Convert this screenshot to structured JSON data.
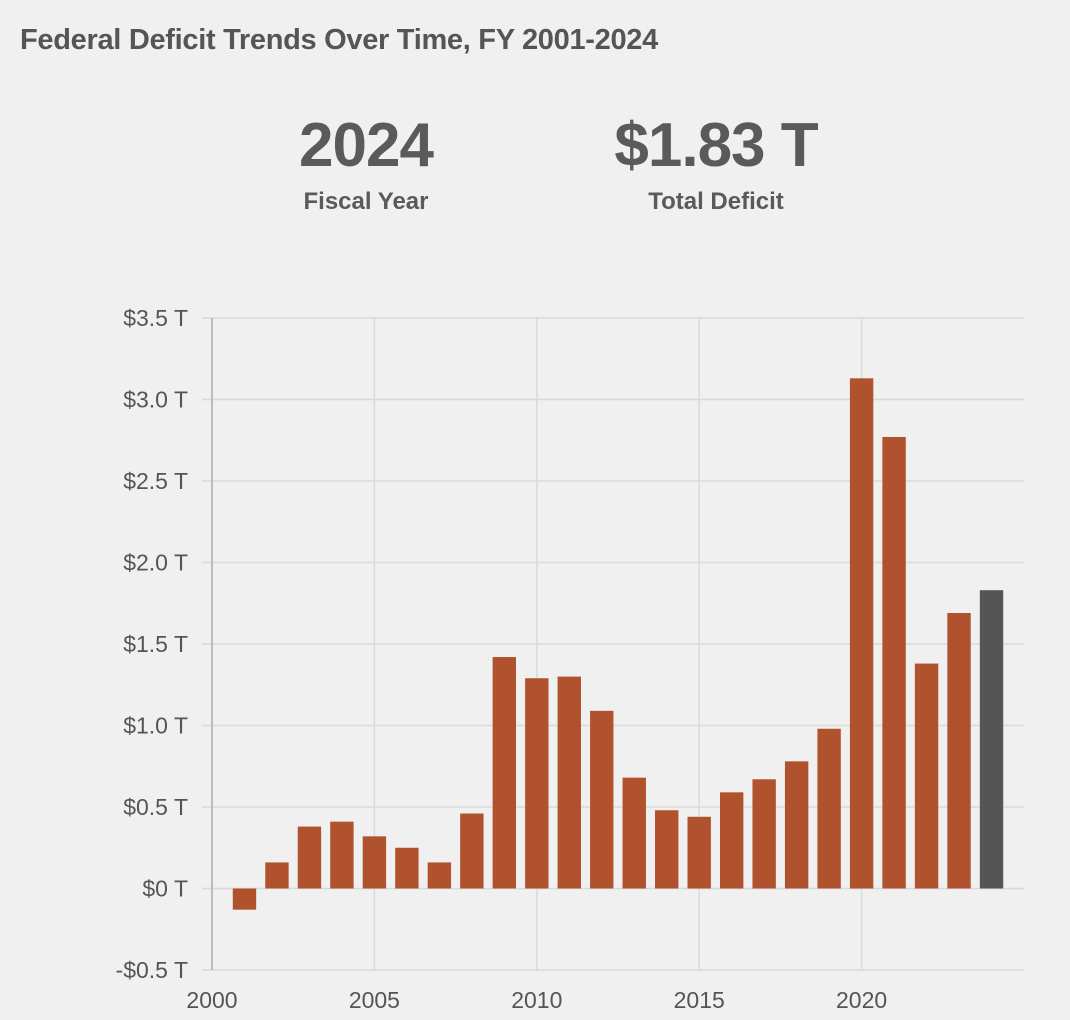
{
  "header": {
    "title": "Federal Deficit Trends Over Time, FY 2001-2024"
  },
  "kpis": {
    "year_value": "2024",
    "year_label": "Fiscal Year",
    "deficit_value": "$1.83 T",
    "deficit_label": "Total Deficit"
  },
  "colors": {
    "bar": "#b0522d",
    "highlight_bar": "#555555",
    "grid": "#d9d9d9",
    "axis": "#bdbdbd"
  },
  "chart_data": {
    "type": "bar",
    "x": [
      2001,
      2002,
      2003,
      2004,
      2005,
      2006,
      2007,
      2008,
      2009,
      2010,
      2011,
      2012,
      2013,
      2014,
      2015,
      2016,
      2017,
      2018,
      2019,
      2020,
      2021,
      2022,
      2023,
      2024
    ],
    "values": [
      -0.13,
      0.16,
      0.38,
      0.41,
      0.32,
      0.25,
      0.16,
      0.46,
      1.42,
      1.29,
      1.3,
      1.09,
      0.68,
      0.48,
      0.44,
      0.59,
      0.67,
      0.78,
      0.98,
      3.13,
      2.77,
      1.38,
      1.69,
      1.83
    ],
    "highlight_x": 2024,
    "ylim": [
      -0.5,
      3.5
    ],
    "xlim": [
      2000,
      2025
    ],
    "y_ticks": [
      {
        "value": 3.5,
        "label": "$3.5 T"
      },
      {
        "value": 3.0,
        "label": "$3.0 T"
      },
      {
        "value": 2.5,
        "label": "$2.5 T"
      },
      {
        "value": 2.0,
        "label": "$2.0 T"
      },
      {
        "value": 1.5,
        "label": "$1.5 T"
      },
      {
        "value": 1.0,
        "label": "$1.0 T"
      },
      {
        "value": 0.5,
        "label": "$0.5 T"
      },
      {
        "value": 0,
        "label": "$0 T"
      },
      {
        "value": -0.5,
        "label": "-$0.5 T"
      }
    ],
    "x_ticks": [
      {
        "value": 2000,
        "label": "2000"
      },
      {
        "value": 2005,
        "label": "2005"
      },
      {
        "value": 2010,
        "label": "2010"
      },
      {
        "value": 2015,
        "label": "2015"
      },
      {
        "value": 2020,
        "label": "2020"
      }
    ],
    "grid": true
  }
}
